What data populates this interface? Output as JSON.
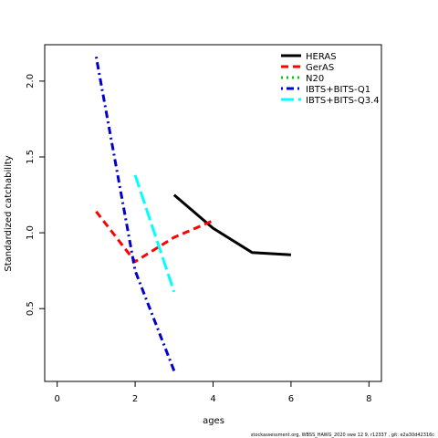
{
  "chart_data": {
    "type": "line",
    "title": "",
    "xlabel": "ages",
    "ylabel": "Standardized catchability",
    "xlim": [
      -0.32,
      8.32
    ],
    "ylim": [
      0.02,
      2.24
    ],
    "xticks": [
      0,
      2,
      4,
      6,
      8
    ],
    "yticks": [
      0.5,
      1.0,
      1.5,
      2.0
    ],
    "ytick_labels": [
      "0.5",
      "1.0",
      "1.5",
      "2.0"
    ],
    "grid": false,
    "legend_position": "top-right",
    "series": [
      {
        "name": "HERAS",
        "color": "#000000",
        "dash": "solid",
        "x": [
          3,
          4,
          5,
          6
        ],
        "y": [
          1.25,
          1.03,
          0.87,
          0.855
        ]
      },
      {
        "name": "GerAS",
        "color": "#FF0000",
        "dash": "dashed",
        "x": [
          1,
          2,
          3,
          4
        ],
        "y": [
          1.14,
          0.81,
          0.97,
          1.08
        ]
      },
      {
        "name": "N20",
        "color": "#00CD00",
        "dash": "dotted",
        "x": [],
        "y": []
      },
      {
        "name": "IBTS+BITS-Q1",
        "color": "#0000CD",
        "dash": "dotdash",
        "x": [
          1,
          2,
          3
        ],
        "y": [
          2.16,
          0.75,
          0.09
        ]
      },
      {
        "name": "IBTS+BITS-Q3.4",
        "color": "#00FFFF",
        "dash": "longdash",
        "x": [
          2,
          3
        ],
        "y": [
          1.38,
          0.61
        ]
      }
    ]
  },
  "footer": "stockassessment.org, WBSS_HAWG_2020 swe 12  9, r12337 , git: e2a30d42316c"
}
